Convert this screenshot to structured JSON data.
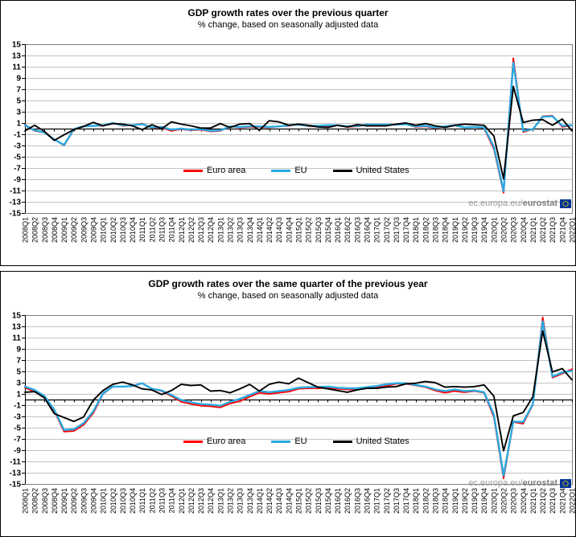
{
  "watermark": {
    "prefix": "ec.europa.eu/",
    "bold": "eurostat"
  },
  "colors": {
    "euro_area": "#ff0000",
    "eu": "#29a9e1",
    "united_states": "#000000",
    "grid": "#c3c3c3",
    "plot_border": "#7f7f7f",
    "axis": "#000000",
    "watermark_gray": "#9b9b9b",
    "flag_blue": "#003399",
    "flag_yellow": "#ffcc00"
  },
  "chart_data": [
    {
      "type": "line",
      "title": "GDP growth rates over the previous quarter",
      "subtitle": "% change, based on seasonally adjusted data",
      "ylim": [
        -15,
        15
      ],
      "yticks": [
        15,
        13,
        11,
        9,
        7,
        5,
        3,
        1,
        -1,
        -3,
        -5,
        -7,
        -9,
        -11,
        -13,
        -15
      ],
      "grid": true,
      "legend_position": "inside-bottom-left",
      "categories": [
        "2008Q1",
        "2008Q2",
        "2008Q3",
        "2008Q4",
        "2009Q1",
        "2009Q2",
        "2009Q3",
        "2009Q4",
        "2010Q1",
        "2010Q2",
        "2010Q3",
        "2010Q4",
        "2011Q1",
        "2011Q2",
        "2011Q3",
        "2011Q4",
        "2012Q1",
        "2012Q2",
        "2012Q3",
        "2012Q4",
        "2013Q1",
        "2013Q2",
        "2013Q3",
        "2013Q4",
        "2014Q1",
        "2014Q2",
        "2014Q3",
        "2014Q4",
        "2015Q1",
        "2015Q2",
        "2015Q3",
        "2015Q4",
        "2016Q1",
        "2016Q2",
        "2016Q3",
        "2016Q4",
        "2017Q1",
        "2017Q2",
        "2017Q3",
        "2017Q4",
        "2018Q1",
        "2018Q2",
        "2018Q3",
        "2018Q4",
        "2019Q1",
        "2019Q2",
        "2019Q3",
        "2019Q4",
        "2020Q1",
        "2020Q2",
        "2020Q3",
        "2020Q4",
        "2021Q1",
        "2021Q2",
        "2021Q3",
        "2021Q4",
        "2022Q1"
      ],
      "series": [
        {
          "name": "Euro area",
          "color": "#ff0000",
          "values": [
            0.7,
            -0.4,
            -0.7,
            -1.9,
            -3.0,
            -0.2,
            0.4,
            0.5,
            0.5,
            1.0,
            0.5,
            0.6,
            0.9,
            0.1,
            0.2,
            -0.4,
            -0.1,
            -0.3,
            -0.2,
            -0.5,
            -0.4,
            0.4,
            0.2,
            0.3,
            0.3,
            0.2,
            0.4,
            0.5,
            0.8,
            0.4,
            0.4,
            0.5,
            0.6,
            0.3,
            0.4,
            0.7,
            0.6,
            0.7,
            0.7,
            0.8,
            0.3,
            0.4,
            0.1,
            0.4,
            0.6,
            0.2,
            0.3,
            0.1,
            -3.6,
            -11.4,
            12.5,
            -0.6,
            -0.1,
            2.2,
            2.3,
            0.3,
            0.6
          ]
        },
        {
          "name": "EU",
          "color": "#29a9e1",
          "values": [
            0.6,
            -0.3,
            -0.7,
            -1.9,
            -2.9,
            -0.1,
            0.4,
            0.5,
            0.6,
            1.0,
            0.6,
            0.6,
            0.8,
            0.2,
            0.3,
            -0.2,
            0.0,
            -0.2,
            -0.1,
            -0.4,
            -0.3,
            0.4,
            0.3,
            0.4,
            0.4,
            0.3,
            0.4,
            0.6,
            0.7,
            0.5,
            0.5,
            0.6,
            0.6,
            0.4,
            0.5,
            0.7,
            0.7,
            0.7,
            0.7,
            0.8,
            0.4,
            0.5,
            0.2,
            0.4,
            0.6,
            0.2,
            0.3,
            0.2,
            -3.2,
            -11.1,
            11.7,
            -0.4,
            -0.1,
            2.1,
            2.2,
            0.5,
            0.6
          ]
        },
        {
          "name": "United States",
          "color": "#000000",
          "values": [
            -0.4,
            0.6,
            -0.5,
            -2.1,
            -1.1,
            -0.2,
            0.4,
            1.1,
            0.5,
            0.9,
            0.8,
            0.5,
            -0.2,
            0.7,
            0.0,
            1.2,
            0.8,
            0.5,
            0.1,
            0.1,
            0.9,
            0.2,
            0.8,
            0.9,
            -0.3,
            1.4,
            1.2,
            0.6,
            0.8,
            0.6,
            0.3,
            0.2,
            0.6,
            0.3,
            0.7,
            0.5,
            0.5,
            0.5,
            0.8,
            1.0,
            0.6,
            0.9,
            0.5,
            0.2,
            0.6,
            0.8,
            0.7,
            0.6,
            -1.3,
            -8.9,
            7.5,
            1.1,
            1.5,
            1.6,
            0.6,
            1.7,
            -0.4
          ]
        }
      ]
    },
    {
      "type": "line",
      "title": "GDP growth rates over the same quarter of the previous year",
      "subtitle": "% change, based on seasonally adjusted data",
      "ylim": [
        -15,
        15
      ],
      "yticks": [
        15,
        13,
        11,
        9,
        7,
        5,
        3,
        1,
        -1,
        -3,
        -5,
        -7,
        -9,
        -11,
        -13,
        -15
      ],
      "grid": true,
      "legend_position": "inside-bottom-left",
      "categories": [
        "2008Q1",
        "2008Q2",
        "2008Q3",
        "2008Q4",
        "2009Q1",
        "2009Q2",
        "2009Q3",
        "2009Q4",
        "2010Q1",
        "2010Q2",
        "2010Q3",
        "2010Q4",
        "2011Q1",
        "2011Q2",
        "2011Q3",
        "2011Q4",
        "2012Q1",
        "2012Q2",
        "2012Q3",
        "2012Q4",
        "2013Q1",
        "2013Q2",
        "2013Q3",
        "2013Q4",
        "2014Q1",
        "2014Q2",
        "2014Q3",
        "2014Q4",
        "2015Q1",
        "2015Q2",
        "2015Q3",
        "2015Q4",
        "2016Q1",
        "2016Q2",
        "2016Q3",
        "2016Q4",
        "2017Q1",
        "2017Q2",
        "2017Q3",
        "2017Q4",
        "2018Q1",
        "2018Q2",
        "2018Q3",
        "2018Q4",
        "2019Q1",
        "2019Q2",
        "2019Q3",
        "2019Q4",
        "2020Q1",
        "2020Q2",
        "2020Q3",
        "2020Q4",
        "2021Q1",
        "2021Q2",
        "2021Q3",
        "2021Q4",
        "2022Q1"
      ],
      "series": [
        {
          "name": "Euro area",
          "color": "#ff0000",
          "values": [
            2.1,
            1.4,
            0.4,
            -2.0,
            -5.7,
            -5.6,
            -4.5,
            -2.4,
            1.0,
            2.3,
            2.3,
            2.4,
            2.9,
            1.9,
            1.5,
            0.6,
            -0.4,
            -0.8,
            -1.1,
            -1.2,
            -1.4,
            -0.7,
            -0.3,
            0.5,
            1.2,
            1.0,
            1.2,
            1.4,
            1.9,
            2.0,
            2.0,
            2.1,
            1.9,
            1.8,
            1.8,
            2.0,
            2.1,
            2.4,
            2.8,
            2.8,
            2.5,
            2.2,
            1.6,
            1.2,
            1.5,
            1.3,
            1.5,
            1.2,
            -3.1,
            -14.0,
            -4.0,
            -4.3,
            -0.9,
            14.6,
            3.9,
            4.6,
            5.4
          ]
        },
        {
          "name": "EU",
          "color": "#29a9e1",
          "values": [
            2.3,
            1.7,
            0.6,
            -1.8,
            -5.4,
            -5.3,
            -4.2,
            -2.1,
            1.1,
            2.3,
            2.3,
            2.4,
            2.9,
            1.9,
            1.6,
            0.8,
            -0.1,
            -0.5,
            -0.8,
            -0.9,
            -1.1,
            -0.4,
            0.1,
            0.8,
            1.5,
            1.3,
            1.5,
            1.7,
            2.1,
            2.2,
            2.2,
            2.3,
            2.1,
            2.0,
            2.0,
            2.2,
            2.4,
            2.7,
            2.9,
            2.9,
            2.6,
            2.3,
            1.8,
            1.5,
            1.8,
            1.5,
            1.6,
            1.3,
            -2.7,
            -13.5,
            -3.9,
            -4.0,
            -0.8,
            13.9,
            4.1,
            4.8,
            5.1
          ]
        },
        {
          "name": "United States",
          "color": "#000000",
          "values": [
            1.3,
            1.4,
            0.3,
            -2.5,
            -3.2,
            -3.9,
            -3.1,
            -0.1,
            1.6,
            2.7,
            3.1,
            2.6,
            1.9,
            1.7,
            0.9,
            1.6,
            2.7,
            2.5,
            2.6,
            1.5,
            1.6,
            1.2,
            1.9,
            2.7,
            1.5,
            2.7,
            3.1,
            2.8,
            3.8,
            3.0,
            2.2,
            1.9,
            1.6,
            1.3,
            1.7,
            2.0,
            2.0,
            2.2,
            2.3,
            2.8,
            2.9,
            3.2,
            3.0,
            2.2,
            2.3,
            2.2,
            2.3,
            2.6,
            0.6,
            -9.1,
            -2.9,
            -2.3,
            0.5,
            12.2,
            4.9,
            5.5,
            3.5
          ]
        }
      ]
    }
  ]
}
